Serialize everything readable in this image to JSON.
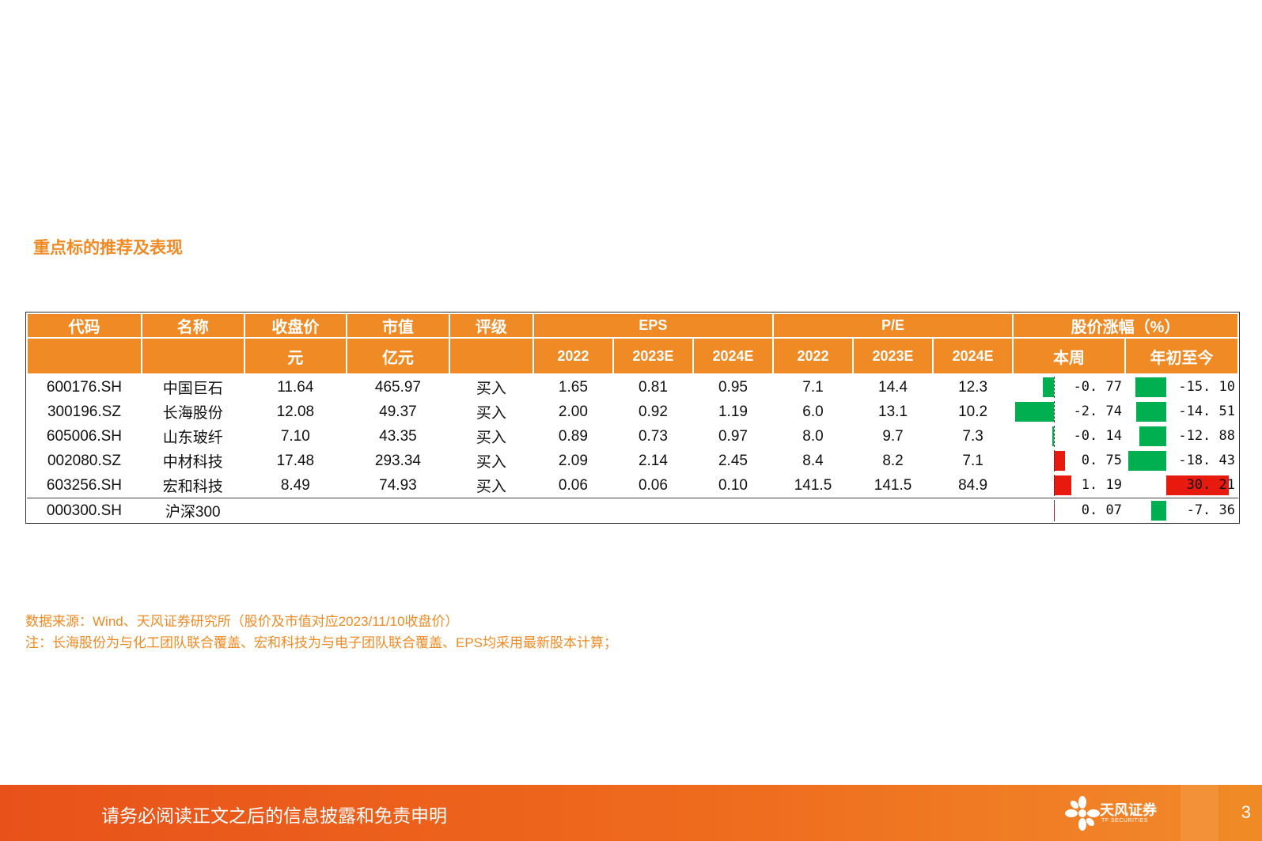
{
  "section_title": "重点标的推荐及表现",
  "table": {
    "header_row1": [
      "代码",
      "名称",
      "收盘价",
      "市值",
      "评级",
      "EPS",
      "P/E",
      "股价涨幅（%）"
    ],
    "header_row2": [
      "",
      "",
      "元",
      "亿元",
      "",
      "2022",
      "2023E",
      "2024E",
      "2022",
      "2023E",
      "2024E",
      "本周",
      "年初至今"
    ],
    "rows": [
      {
        "code": "600176.SH",
        "name": "中国巨石",
        "close": "11.64",
        "mcap": "465.97",
        "rating": "买入",
        "eps": [
          "1.65",
          "0.81",
          "0.95"
        ],
        "pe": [
          "7.1",
          "14.4",
          "12.3"
        ],
        "week": "-0. 77",
        "week_value": -0.77,
        "ytd": "-15. 10",
        "ytd_value": -15.1
      },
      {
        "code": "300196.SZ",
        "name": "长海股份",
        "close": "12.08",
        "mcap": "49.37",
        "rating": "买入",
        "eps": [
          "2.00",
          "0.92",
          "1.19"
        ],
        "pe": [
          "6.0",
          "13.1",
          "10.2"
        ],
        "week": "-2. 74",
        "week_value": -2.74,
        "ytd": "-14. 51",
        "ytd_value": -14.51
      },
      {
        "code": "605006.SH",
        "name": "山东玻纤",
        "close": "7.10",
        "mcap": "43.35",
        "rating": "买入",
        "eps": [
          "0.89",
          "0.73",
          "0.97"
        ],
        "pe": [
          "8.0",
          "9.7",
          "7.3"
        ],
        "week": "-0. 14",
        "week_value": -0.14,
        "ytd": "-12. 88",
        "ytd_value": -12.88
      },
      {
        "code": "002080.SZ",
        "name": "中材科技",
        "close": "17.48",
        "mcap": "293.34",
        "rating": "买入",
        "eps": [
          "2.09",
          "2.14",
          "2.45"
        ],
        "pe": [
          "8.4",
          "8.2",
          "7.1"
        ],
        "week": "0. 75",
        "week_value": 0.75,
        "ytd": "-18. 43",
        "ytd_value": -18.43
      },
      {
        "code": "603256.SH",
        "name": "宏和科技",
        "close": "8.49",
        "mcap": "74.93",
        "rating": "买入",
        "eps": [
          "0.06",
          "0.06",
          "0.10"
        ],
        "pe": [
          "141.5",
          "141.5",
          "84.9"
        ],
        "week": "1. 19",
        "week_value": 1.19,
        "ytd": "30. 21",
        "ytd_value": 30.21
      },
      {
        "code": "000300.SH",
        "name": "沪深300",
        "close": "",
        "mcap": "",
        "rating": "",
        "eps": [
          "",
          "",
          ""
        ],
        "pe": [
          "",
          "",
          ""
        ],
        "week": "0. 07",
        "week_value": 0.07,
        "ytd": "-7. 36",
        "ytd_value": -7.36
      }
    ]
  },
  "notes": [
    "数据来源：Wind、天风证券研究所（股价及市值对应2023/11/10收盘价）",
    "注：长海股份为与化工团队联合覆盖、宏和科技为与电子团队联合覆盖、EPS均采用最新股本计算；"
  ],
  "footer": {
    "disclaimer": "请务必阅读正文之后的信息披露和免责申明",
    "logo_text": "天风证券",
    "logo_sub": "TF SECURITIES",
    "logo_icon": "flower-logo-icon",
    "page_number": "3"
  },
  "colors": {
    "accent": "#f08a24",
    "positive_bar": "#e8190f",
    "negative_bar": "#00b050"
  }
}
